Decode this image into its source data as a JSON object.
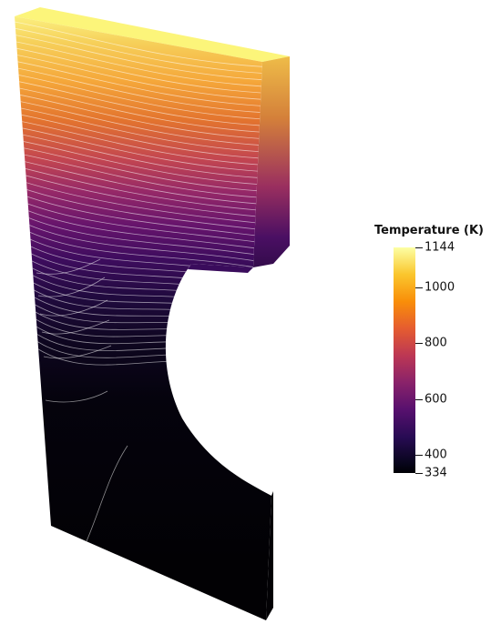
{
  "colorbar": {
    "title": "Temperature (K)",
    "min": 334,
    "max": 1144,
    "ticks": [
      {
        "value": 1144,
        "label": "1144"
      },
      {
        "value": 1000,
        "label": "1000"
      },
      {
        "value": 800,
        "label": "800"
      },
      {
        "value": 600,
        "label": "600"
      },
      {
        "value": 400,
        "label": "400"
      },
      {
        "value": 334,
        "label": "334"
      }
    ],
    "colormap": [
      "#000004",
      "#280b54",
      "#57106e",
      "#89226a",
      "#bc3754",
      "#e55c30",
      "#f98e09",
      "#fac62d",
      "#fcffa4"
    ]
  }
}
